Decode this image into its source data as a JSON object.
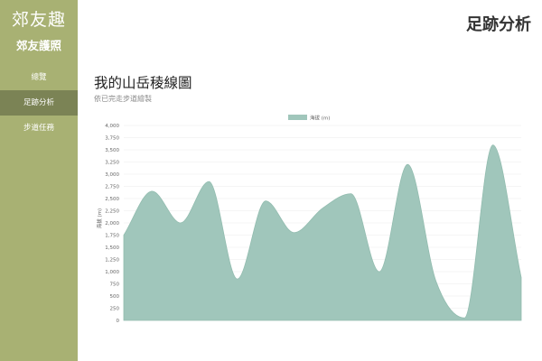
{
  "sidebar": {
    "brand": "郊友趣",
    "subtitle": "郊友護照",
    "items": [
      {
        "label": "總覽",
        "active": false
      },
      {
        "label": "足跡分析",
        "active": true
      },
      {
        "label": "步道任務",
        "active": false
      }
    ]
  },
  "header": {
    "title": "足跡分析"
  },
  "main": {
    "title": "我的山岳稜線圖",
    "subtitle": "依已完走步道繪製"
  },
  "colors": {
    "sidebar": "#a8b173",
    "sidebar_active": "#7b8355",
    "area_fill": "#a0c6bb",
    "area_stroke": "#92bcaf"
  },
  "chart_data": {
    "type": "area",
    "legend": "海拔 (m)",
    "legend_position": "top-center",
    "ylabel": "海拔 (m)",
    "xlabel": "",
    "ylim": [
      0,
      4000
    ],
    "yticks": [
      0,
      250,
      500,
      750,
      1000,
      1250,
      1500,
      1750,
      2000,
      2250,
      2500,
      2750,
      3000,
      3250,
      3500,
      3750,
      4000
    ],
    "grid": true,
    "values": [
      1750,
      2650,
      2000,
      2850,
      850,
      2450,
      1800,
      2300,
      2600,
      1000,
      3200,
      800,
      50,
      3600,
      880
    ]
  }
}
